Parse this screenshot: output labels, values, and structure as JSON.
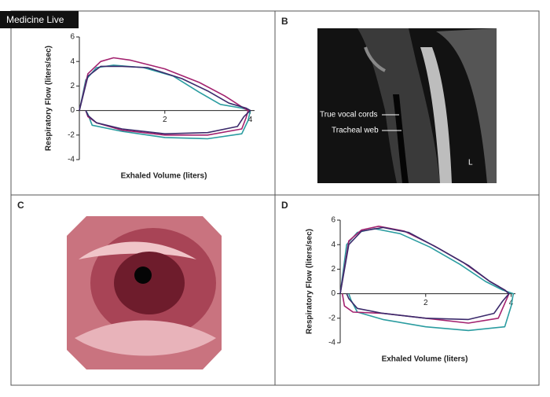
{
  "watermark": "Medicine Live",
  "panel_letters": [
    "B",
    "C",
    "D"
  ],
  "ct_labels": [
    "True vocal cords",
    "Tracheal web",
    "L"
  ],
  "chart_data": [
    {
      "type": "line",
      "xlabel": "Exhaled Volume (liters)",
      "ylabel": "Respiratory Flow (liters/sec)",
      "xlim": [
        0,
        4.1
      ],
      "ylim": [
        -4,
        6
      ],
      "xticks": [
        2,
        4
      ],
      "yticks": [
        -4,
        -2,
        0,
        2,
        4,
        6
      ],
      "series": [
        {
          "color": "#2a9ca0",
          "x": [
            0,
            0.15,
            0.4,
            0.8,
            1.5,
            2.2,
            2.8,
            3.3,
            3.8,
            4.0,
            3.95,
            3.8,
            3.0,
            2.0,
            1.0,
            0.3,
            0.2,
            0.15
          ],
          "values": [
            0,
            2.5,
            3.5,
            3.7,
            3.5,
            2.8,
            1.5,
            0.5,
            0.2,
            0,
            -0.8,
            -1.9,
            -2.3,
            -2.2,
            -1.7,
            -1.2,
            -0.3,
            0
          ]
        },
        {
          "color": "#a3226f",
          "x": [
            0,
            0.2,
            0.5,
            0.8,
            1.2,
            2.0,
            2.8,
            3.4,
            3.8,
            3.95,
            3.9,
            3.8,
            3.0,
            2.0,
            1.0,
            0.4,
            0.2,
            0.15
          ],
          "values": [
            0,
            3.0,
            4.0,
            4.3,
            4.1,
            3.4,
            2.3,
            1.2,
            0.3,
            0,
            -0.6,
            -1.5,
            -2.0,
            -2.0,
            -1.6,
            -1.0,
            -0.5,
            0
          ]
        },
        {
          "color": "#3b2a6b",
          "x": [
            0,
            0.2,
            0.5,
            1.0,
            1.6,
            2.4,
            3.0,
            3.5,
            3.9,
            4.0,
            3.85,
            3.7,
            3.0,
            2.0,
            1.0,
            0.4,
            0.2,
            0.15
          ],
          "values": [
            0,
            2.8,
            3.6,
            3.6,
            3.5,
            2.6,
            1.6,
            0.6,
            0.2,
            0,
            -0.5,
            -1.3,
            -1.8,
            -1.9,
            -1.5,
            -1.0,
            -0.4,
            0
          ]
        }
      ]
    },
    {
      "type": "line",
      "xlabel": "Exhaled Volume (liters)",
      "ylabel": "Respiratory Flow (liters/sec)",
      "xlim": [
        0,
        4.1
      ],
      "ylim": [
        -4,
        6
      ],
      "xticks": [
        2,
        4
      ],
      "yticks": [
        -4,
        -2,
        0,
        2,
        4,
        6
      ],
      "series": [
        {
          "color": "#2a9ca0",
          "x": [
            0,
            0.15,
            0.4,
            0.8,
            1.4,
            2.1,
            2.8,
            3.4,
            3.8,
            4.05,
            4.0,
            3.85,
            3.0,
            2.0,
            1.0,
            0.4,
            0.25,
            0.2
          ],
          "values": [
            0,
            4.0,
            5.0,
            5.3,
            4.9,
            3.8,
            2.4,
            1.0,
            0.3,
            0,
            -1.0,
            -2.7,
            -3.0,
            -2.7,
            -2.1,
            -1.5,
            -0.5,
            0
          ]
        },
        {
          "color": "#a3226f",
          "x": [
            0,
            0.2,
            0.5,
            0.9,
            1.5,
            2.2,
            2.9,
            3.5,
            3.85,
            3.95,
            3.85,
            3.7,
            3.0,
            2.0,
            1.0,
            0.3,
            0.1,
            0.05
          ],
          "values": [
            0,
            4.3,
            5.2,
            5.5,
            5.1,
            3.9,
            2.5,
            1.0,
            0.3,
            0,
            -0.8,
            -2.0,
            -2.4,
            -2.0,
            -1.6,
            -1.5,
            -1.0,
            0
          ]
        },
        {
          "color": "#3b2a6b",
          "x": [
            0,
            0.2,
            0.5,
            1.0,
            1.6,
            2.3,
            3.0,
            3.5,
            3.85,
            3.95,
            3.8,
            3.6,
            3.0,
            2.0,
            1.0,
            0.4,
            0.2,
            0.15
          ],
          "values": [
            0,
            4.0,
            5.1,
            5.4,
            5.0,
            3.7,
            2.3,
            1.0,
            0.3,
            0,
            -0.6,
            -1.6,
            -2.1,
            -2.0,
            -1.6,
            -1.2,
            -0.4,
            0
          ]
        }
      ]
    }
  ]
}
